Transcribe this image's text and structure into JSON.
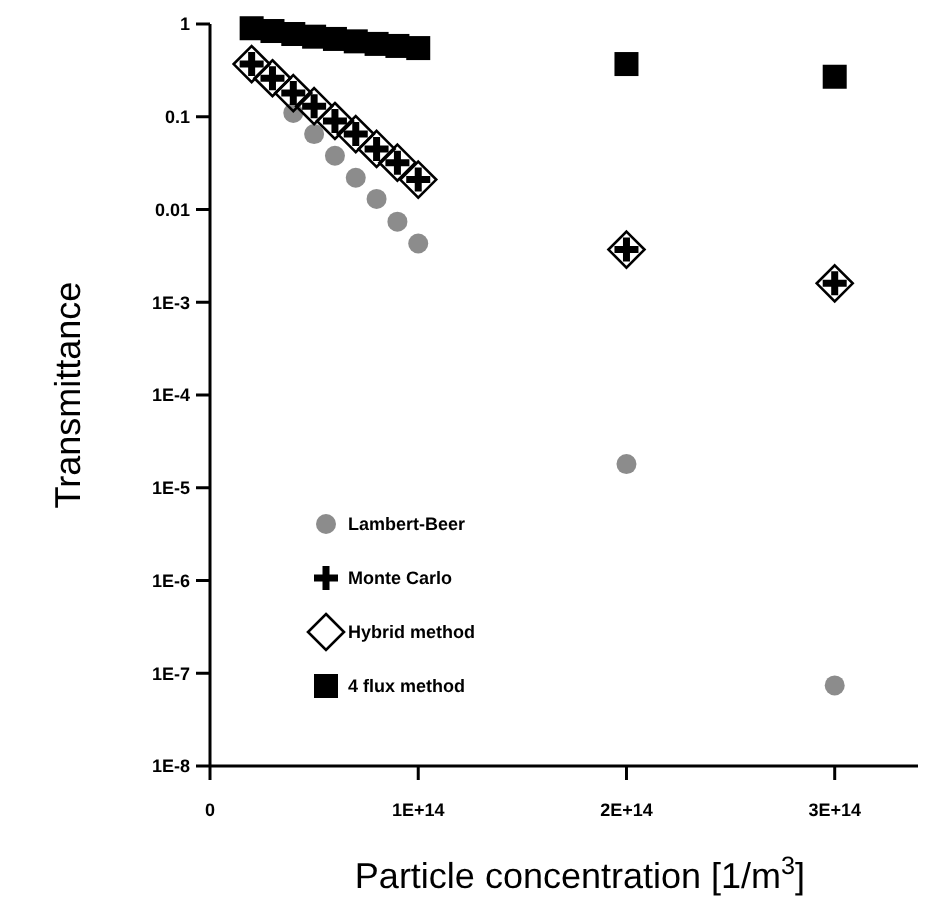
{
  "chart_data": {
    "type": "scatter",
    "xlabel": "Particle concentration [1/m$^{3}$]",
    "ylabel": "Transmittance",
    "log": "y",
    "xlim": [
      0,
      340000000000000.0
    ],
    "xticks": [
      0,
      {
        "value": 100000000000000.0,
        "label": "1E+14"
      },
      {
        "value": 200000000000000.0,
        "label": "2E+14"
      },
      {
        "value": 300000000000000.0,
        "label": "3E+14"
      }
    ],
    "ylim": [
      1e-08,
      1
    ],
    "yticks": [
      1,
      0.1,
      0.01,
      {
        "value": 0.001,
        "label": "1E-3"
      },
      {
        "value": 0.0001,
        "label": "1E-4"
      },
      {
        "value": 1e-05,
        "label": "1E-5"
      },
      {
        "value": 1e-06,
        "label": "1E-6"
      },
      {
        "value": 1e-07,
        "label": "1E-7"
      },
      {
        "value": 1e-08,
        "label": "1E-8"
      }
    ],
    "grid": false,
    "legend": "bottom left",
    "x": [
      20000000000000.0,
      30000000000000.0,
      40000000000000.0,
      50000000000000.0,
      60000000000000.0,
      70000000000000.0,
      80000000000000.0,
      90000000000000.0,
      100000000000000.0,
      200000000000000.0,
      300000000000000.0
    ],
    "series": [
      {
        "name": "Lambert-Beer",
        "color": "#8c8c8c",
        "marker": "circle",
        "values": [
          null,
          null,
          0.11,
          0.065,
          0.038,
          0.022,
          0.013,
          0.0074,
          0.0043,
          1.8e-05,
          7.4e-08
        ]
      },
      {
        "name": "Monte Carlo",
        "color": "#000000",
        "marker": "cross",
        "values": [
          0.37,
          0.26,
          0.18,
          0.13,
          0.09,
          0.065,
          0.045,
          0.032,
          0.021,
          0.0037,
          0.0016
        ]
      },
      {
        "name": "Hybrid method",
        "color": "#000000",
        "marker": "diamond",
        "values": [
          0.37,
          0.26,
          0.18,
          0.13,
          0.09,
          0.065,
          0.045,
          0.032,
          0.021,
          0.0037,
          0.0016
        ]
      },
      {
        "name": "4 flux method",
        "color": "#000000",
        "marker": "square",
        "values": [
          0.9,
          0.84,
          0.78,
          0.73,
          0.69,
          0.65,
          0.61,
          0.58,
          0.55,
          0.37,
          0.27
        ]
      }
    ]
  }
}
